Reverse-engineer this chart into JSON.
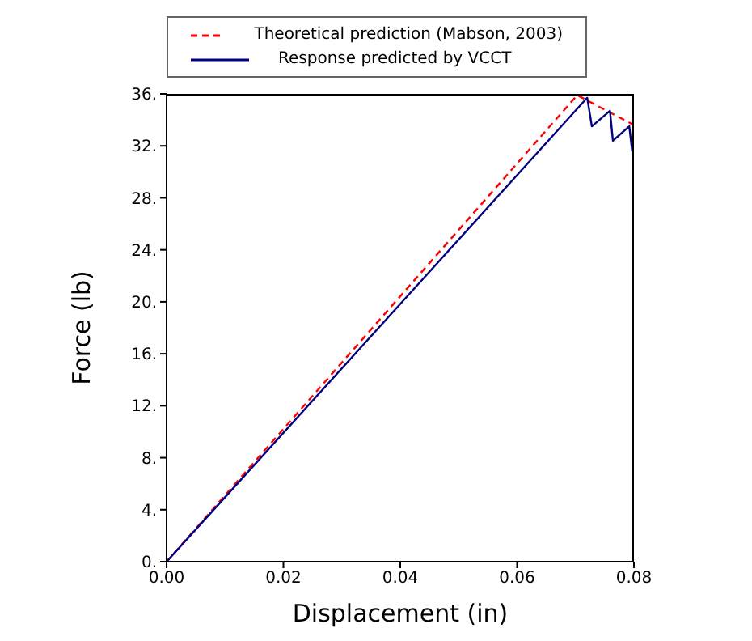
{
  "chart_data": {
    "type": "line",
    "xlabel": "Displacement (in)",
    "ylabel": "Force (lb)",
    "xlim": [
      0,
      0.08
    ],
    "ylim": [
      0,
      36
    ],
    "xticks": [
      {
        "value": 0,
        "label": "0.00"
      },
      {
        "value": 0.02,
        "label": "0.02"
      },
      {
        "value": 0.04,
        "label": "0.04"
      },
      {
        "value": 0.06,
        "label": "0.06"
      },
      {
        "value": 0.08,
        "label": "0.08"
      }
    ],
    "yticks": [
      {
        "value": 0,
        "label": "0."
      },
      {
        "value": 4,
        "label": "4."
      },
      {
        "value": 8,
        "label": "8."
      },
      {
        "value": 12,
        "label": "12."
      },
      {
        "value": 16,
        "label": "16."
      },
      {
        "value": 20,
        "label": "20."
      },
      {
        "value": 24,
        "label": "24."
      },
      {
        "value": 28,
        "label": "28."
      },
      {
        "value": 32,
        "label": "32."
      },
      {
        "value": 36,
        "label": "36."
      }
    ],
    "grid": false,
    "legend": "top",
    "marker": "none",
    "series": [
      {
        "name": "Theoretical prediction (Mabson, 2003)",
        "color": "#ff0000",
        "line_style": "dashed",
        "x": [
          0,
          0.0703,
          0.08
        ],
        "values": [
          0,
          35.9,
          33.6
        ]
      },
      {
        "name": "Response predicted by VCCT",
        "color": "#000080",
        "line_style": "solid",
        "x": [
          0,
          0.072,
          0.0728,
          0.0759,
          0.0764,
          0.0792,
          0.0797,
          0.08
        ],
        "values": [
          0,
          35.7,
          33.5,
          34.7,
          32.4,
          33.5,
          31.6,
          31.6
        ]
      }
    ]
  }
}
